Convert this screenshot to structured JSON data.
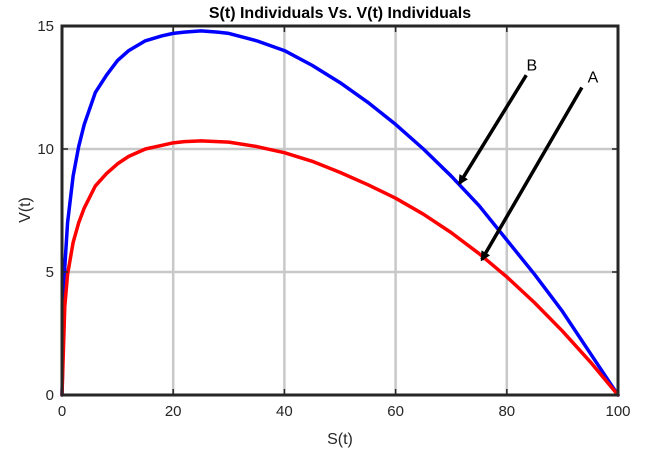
{
  "chart_data": {
    "type": "line",
    "title": "S(t) Individuals Vs. V(t) Individuals",
    "xlabel": "S(t)",
    "ylabel": "V(t)",
    "xlim": [
      0,
      100
    ],
    "ylim": [
      0,
      15
    ],
    "xticks": [
      0,
      20,
      40,
      60,
      80,
      100
    ],
    "yticks": [
      0,
      5,
      10,
      15
    ],
    "grid": true,
    "colors": {
      "A": "#ff0000",
      "B": "#0000ff",
      "grid": "#c8c8c8",
      "axes": "#262626"
    },
    "series": [
      {
        "key": "B",
        "color": "#0000ff",
        "x": [
          0,
          0.5,
          1,
          2,
          3,
          4,
          6,
          8,
          10,
          12,
          15,
          18,
          20,
          22,
          25,
          28,
          30,
          35,
          40,
          45,
          50,
          55,
          60,
          65,
          70,
          75,
          80,
          85,
          90,
          95,
          100
        ],
        "y": [
          0,
          5.2,
          7.0,
          8.9,
          10.1,
          11.0,
          12.3,
          13.0,
          13.6,
          14.0,
          14.4,
          14.6,
          14.7,
          14.75,
          14.8,
          14.75,
          14.7,
          14.4,
          14.0,
          13.4,
          12.7,
          11.9,
          11.0,
          10.0,
          8.9,
          7.7,
          6.3,
          4.9,
          3.4,
          1.7,
          0
        ]
      },
      {
        "key": "A",
        "color": "#ff0000",
        "x": [
          0,
          0.5,
          1,
          2,
          3,
          4,
          6,
          8,
          10,
          12,
          15,
          18,
          20,
          22,
          25,
          28,
          30,
          35,
          40,
          45,
          50,
          55,
          60,
          65,
          70,
          75,
          80,
          85,
          90,
          95,
          100
        ],
        "y": [
          0,
          3.6,
          4.9,
          6.2,
          7.0,
          7.6,
          8.5,
          9.0,
          9.4,
          9.7,
          10.0,
          10.15,
          10.25,
          10.3,
          10.33,
          10.3,
          10.28,
          10.1,
          9.85,
          9.5,
          9.05,
          8.55,
          8.0,
          7.35,
          6.6,
          5.75,
          4.8,
          3.75,
          2.6,
          1.35,
          0
        ]
      }
    ],
    "annotations": [
      {
        "text": "B",
        "text_x": 84.5,
        "text_y": 13.4,
        "arrow_from": [
          83.5,
          13.0
        ],
        "arrow_to": [
          71.5,
          8.6
        ]
      },
      {
        "text": "A",
        "text_x": 95.5,
        "text_y": 12.9,
        "arrow_from": [
          93.5,
          12.5
        ],
        "arrow_to": [
          75.5,
          5.5
        ]
      }
    ]
  }
}
